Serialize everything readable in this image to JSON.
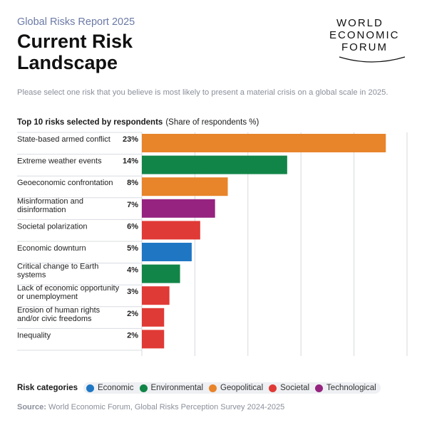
{
  "header": {
    "report_label": "Global Risks Report 2025",
    "title": "Current Risk Landscape",
    "logo_lines": [
      "WORLD",
      "ECONOMIC",
      "FORUM"
    ]
  },
  "question": "Please select one risk that you believe is most likely to present a material crisis on a global scale in 2025.",
  "chart_heading": {
    "bold": "Top 10 risks selected by respondents",
    "note": "(Share of respondents %)"
  },
  "colors": {
    "Economic": "#1f77c4",
    "Environmental": "#118547",
    "Geopolitical": "#e8842a",
    "Societal": "#e03a36",
    "Technological": "#95237f"
  },
  "chart_data": {
    "type": "bar",
    "orientation": "horizontal",
    "title": "Top 10 risks selected by respondents",
    "subtitle": "(Share of respondents %)",
    "xlim": [
      0,
      25
    ],
    "grid": true,
    "categories": [
      "State-based armed conflict",
      "Extreme weather events",
      "Geoeconomic confrontation",
      "Misinformation and disinformation",
      "Societal polarization",
      "Economic downturn",
      "Critical change to Earth systems",
      "Lack of economic opportunity or unemployment",
      "Erosion of human rights and/or civic freedoms",
      "Inequality"
    ],
    "category_lines": [
      [
        "State-based armed conflict"
      ],
      [
        "Extreme weather events"
      ],
      [
        "Geoeconomic confrontation"
      ],
      [
        "Misinformation and",
        "disinformation"
      ],
      [
        "Societal polarization"
      ],
      [
        "Economic downturn"
      ],
      [
        "Critical change to Earth",
        "systems"
      ],
      [
        "Lack of economic opportunity",
        "or unemployment"
      ],
      [
        "Erosion of human rights",
        "and/or civic freedoms"
      ],
      [
        "Inequality"
      ]
    ],
    "values": [
      23,
      14,
      8,
      7,
      6,
      5,
      4,
      3,
      2,
      2
    ],
    "value_labels": [
      "23%",
      "14%",
      "8%",
      "7%",
      "6%",
      "5%",
      "4%",
      "3%",
      "2%",
      "2%"
    ],
    "bar_values": [
      23,
      13.7,
      8.1,
      6.9,
      5.5,
      4.7,
      3.6,
      2.6,
      2.1,
      2.1
    ],
    "series_category": [
      "Geopolitical",
      "Environmental",
      "Geopolitical",
      "Technological",
      "Societal",
      "Economic",
      "Environmental",
      "Societal",
      "Societal",
      "Societal"
    ]
  },
  "legend": {
    "title": "Risk categories",
    "items": [
      "Economic",
      "Environmental",
      "Geopolitical",
      "Societal",
      "Technological"
    ]
  },
  "source": {
    "label": "Source:",
    "text": "World Economic Forum, Global Risks Perception Survey 2024-2025"
  }
}
